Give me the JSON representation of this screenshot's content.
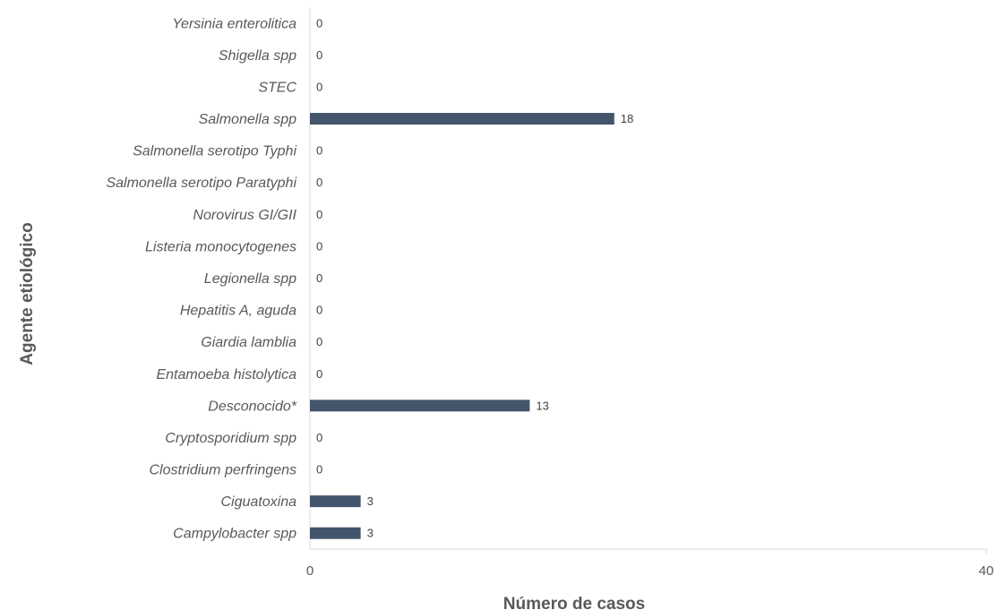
{
  "chart_data": {
    "type": "bar",
    "orientation": "horizontal",
    "categories": [
      "Yersinia enterolitica",
      "Shigella spp",
      "STEC",
      "Salmonella spp",
      "Salmonella serotipo Typhi",
      "Salmonella serotipo Paratyphi",
      "Norovirus GI/GII",
      "Listeria monocytogenes",
      "Legionella spp",
      "Hepatitis A, aguda",
      "Giardia lamblia",
      "Entamoeba histolytica",
      "Desconocido*",
      "Cryptosporidium spp",
      "Clostridium perfringens",
      "Ciguatoxina",
      "Campylobacter spp"
    ],
    "values": [
      0,
      0,
      0,
      18,
      0,
      0,
      0,
      0,
      0,
      0,
      0,
      0,
      13,
      0,
      0,
      3,
      3
    ],
    "xlabel": "Número de casos",
    "ylabel": "Agente etiológico",
    "xlim": [
      0,
      40
    ],
    "xticks": [
      "0",
      "40"
    ],
    "grid": false,
    "legend": "none",
    "bar_color": "#44546a",
    "axis_color": "#d9d9d9"
  }
}
